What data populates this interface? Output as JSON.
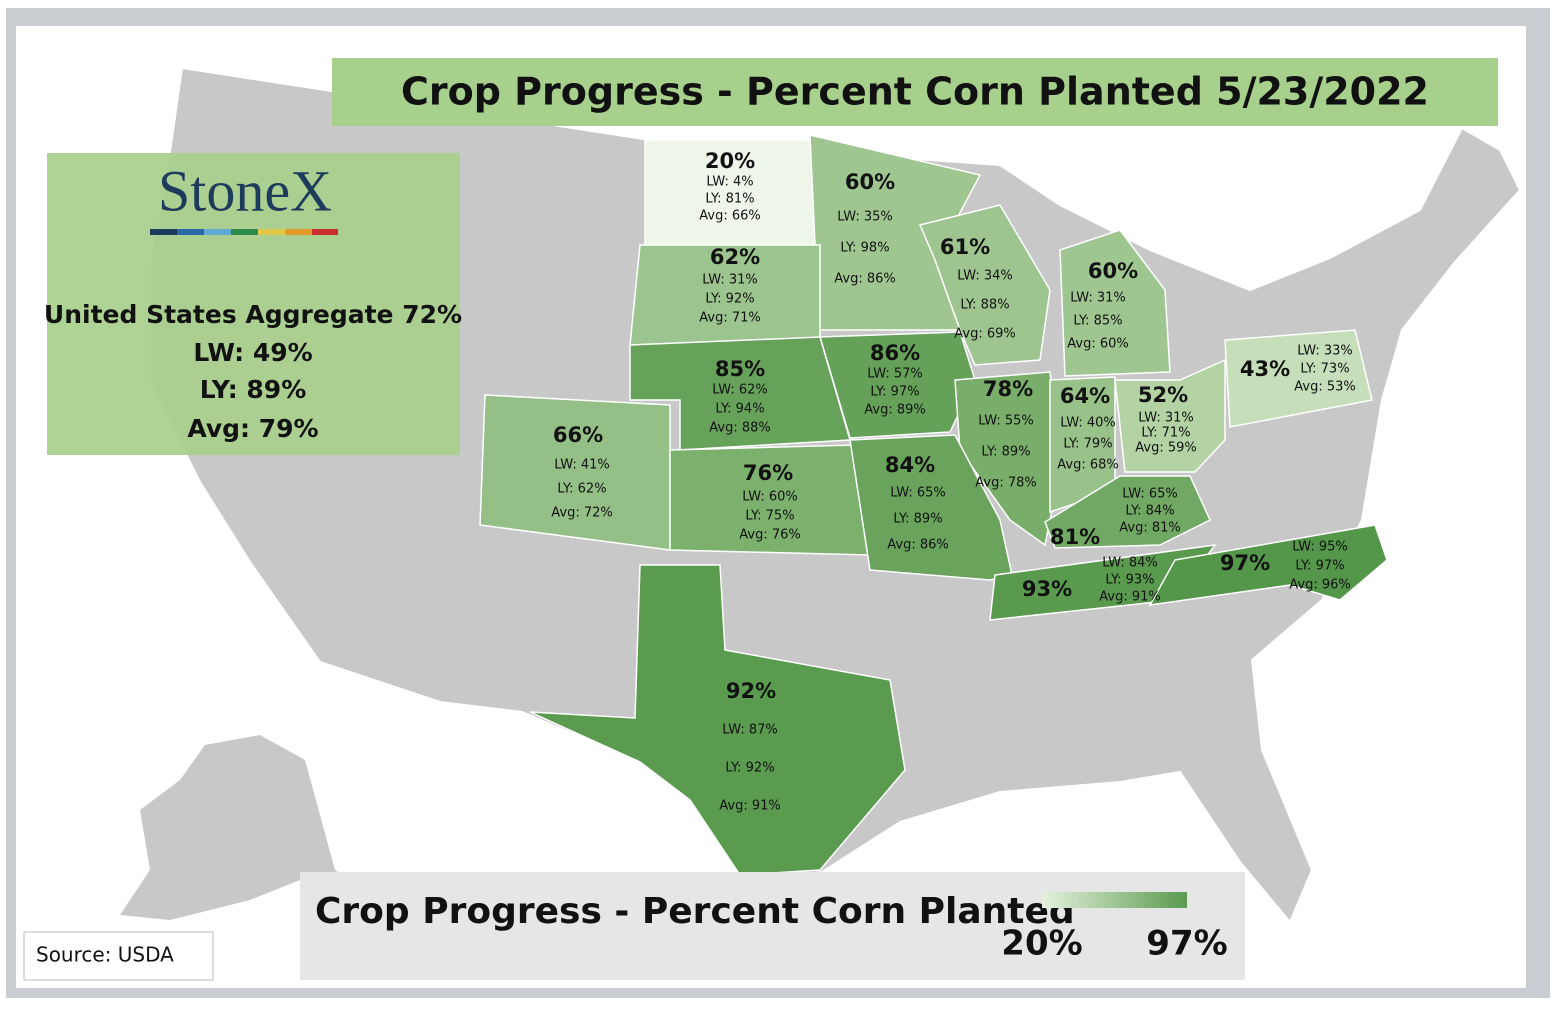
{
  "title": "Crop Progress - Percent Corn Planted 5/23/2022",
  "logo": "StoneX",
  "aggregate": {
    "total": "United States Aggregate 72%",
    "lw": "LW: 49%",
    "ly": "LY: 89%",
    "avg": "Avg: 79%"
  },
  "states": [
    {
      "pct": "20%",
      "lw": "LW: 4%",
      "ly": "LY: 81%",
      "avg": "Avg: 66%",
      "color": "#eef6ea"
    },
    {
      "pct": "60%",
      "lw": "LW: 35%",
      "ly": "LY: 98%",
      "avg": "Avg: 86%",
      "color": "#9fc691"
    },
    {
      "pct": "62%",
      "lw": "LW: 31%",
      "ly": "LY: 92%",
      "avg": "Avg: 71%",
      "color": "#9cc48e"
    },
    {
      "pct": "61%",
      "lw": "LW: 34%",
      "ly": "LY: 88%",
      "avg": "Avg: 69%",
      "color": "#9ec590"
    },
    {
      "pct": "60%",
      "lw": "LW: 31%",
      "ly": "LY: 85%",
      "avg": "Avg: 60%",
      "color": "#9fc691"
    },
    {
      "pct": "85%",
      "lw": "LW: 62%",
      "ly": "LY: 94%",
      "avg": "Avg: 88%",
      "color": "#67a25a"
    },
    {
      "pct": "86%",
      "lw": "LW: 57%",
      "ly": "LY: 97%",
      "avg": "Avg: 89%",
      "color": "#65a158"
    },
    {
      "pct": "78%",
      "lw": "LW: 55%",
      "ly": "LY: 89%",
      "avg": "Avg: 78%",
      "color": "#78ae69"
    },
    {
      "pct": "64%",
      "lw": "LW: 40%",
      "ly": "LY: 79%",
      "avg": "Avg: 68%",
      "color": "#98c28a"
    },
    {
      "pct": "52%",
      "lw": "LW: 31%",
      "ly": "LY: 71%",
      "avg": "Avg: 59%",
      "color": "#b3d3a5"
    },
    {
      "pct": "43%",
      "lw": "LW: 33%",
      "ly": "LY: 73%",
      "avg": "Avg: 53%",
      "color": "#c6dfba"
    },
    {
      "pct": "66%",
      "lw": "LW: 41%",
      "ly": "LY: 62%",
      "avg": "Avg: 72%",
      "color": "#94bf86"
    },
    {
      "pct": "76%",
      "lw": "LW: 60%",
      "ly": "LY: 75%",
      "avg": "Avg: 76%",
      "color": "#7cb16d"
    },
    {
      "pct": "84%",
      "lw": "LW: 65%",
      "ly": "LY: 89%",
      "avg": "Avg: 86%",
      "color": "#69a35c"
    },
    {
      "pct": "81%",
      "lw": "LW: 65%",
      "ly": "LY: 84%",
      "avg": "Avg: 81%",
      "color": "#71a964"
    },
    {
      "pct": "93%",
      "lw": "LW: 84%",
      "ly": "LY: 93%",
      "avg": "Avg: 91%",
      "color": "#5a9a4e"
    },
    {
      "pct": "97%",
      "lw": "LW: 95%",
      "ly": "LY: 97%",
      "avg": "Avg: 96%",
      "color": "#54964a"
    },
    {
      "pct": "92%",
      "lw": "LW: 87%",
      "ly": "LY: 92%",
      "avg": "Avg: 91%",
      "color": "#5b9b50"
    }
  ],
  "legend": {
    "title": "Crop Progress - Percent Corn Planted",
    "min": "20%",
    "max": "97%",
    "colors": [
      "#e4f1dc",
      "#5a9a4f"
    ]
  },
  "source": "Source: USDA"
}
